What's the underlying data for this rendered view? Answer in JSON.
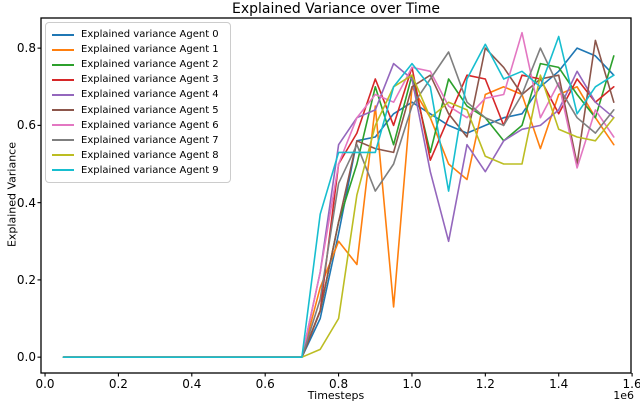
{
  "figure": {
    "background": "#ffffff",
    "spine_color": "#000000"
  },
  "chart_data": {
    "type": "line",
    "title": "Explained Variance over Time",
    "xlabel": "Timesteps",
    "ylabel": "Explained Variance",
    "x_offset_label": "1e6",
    "grid": false,
    "legend_position": "upper left",
    "xlim": [
      -0.011,
      1.597
    ],
    "ylim": [
      -0.041,
      0.878
    ],
    "x_ticks": [
      0.0,
      0.2,
      0.4,
      0.6,
      0.8,
      1.0,
      1.2,
      1.4,
      1.6
    ],
    "y_ticks": [
      0.0,
      0.2,
      0.4,
      0.6,
      0.8
    ],
    "x": [
      0.05,
      0.1,
      0.15,
      0.2,
      0.25,
      0.3,
      0.35,
      0.4,
      0.45,
      0.5,
      0.55,
      0.6,
      0.65,
      0.7,
      0.75,
      0.8,
      0.85,
      0.9,
      0.95,
      1.0,
      1.05,
      1.1,
      1.15,
      1.2,
      1.25,
      1.3,
      1.35,
      1.4,
      1.45,
      1.5,
      1.55
    ],
    "series": [
      {
        "name": "Agent 0",
        "label": "Explained variance Agent 0",
        "color": "#1f77b4",
        "values": [
          0,
          0,
          0,
          0,
          0,
          0,
          0,
          0,
          0,
          0,
          0,
          0,
          0,
          0,
          0.1,
          0.32,
          0.56,
          0.57,
          0.63,
          0.66,
          0.63,
          0.6,
          0.58,
          0.6,
          0.62,
          0.63,
          0.7,
          0.74,
          0.8,
          0.78,
          0.73
        ]
      },
      {
        "name": "Agent 1",
        "label": "Explained variance Agent 1",
        "color": "#ff7f0e",
        "values": [
          0,
          0,
          0,
          0,
          0,
          0,
          0,
          0,
          0,
          0,
          0,
          0,
          0,
          0,
          0.18,
          0.3,
          0.24,
          0.65,
          0.13,
          0.7,
          0.62,
          0.5,
          0.46,
          0.68,
          0.7,
          0.68,
          0.54,
          0.68,
          0.7,
          0.62,
          0.55
        ]
      },
      {
        "name": "Agent 2",
        "label": "Explained variance Agent 2",
        "color": "#2ca02c",
        "values": [
          0,
          0,
          0,
          0,
          0,
          0,
          0,
          0,
          0,
          0,
          0,
          0,
          0,
          0,
          0.12,
          0.35,
          0.5,
          0.7,
          0.55,
          0.73,
          0.53,
          0.72,
          0.65,
          0.62,
          0.56,
          0.6,
          0.76,
          0.75,
          0.68,
          0.62,
          0.78
        ]
      },
      {
        "name": "Agent 3",
        "label": "Explained variance Agent 3",
        "color": "#d62728",
        "values": [
          0,
          0,
          0,
          0,
          0,
          0,
          0,
          0,
          0,
          0,
          0,
          0,
          0,
          0,
          0.12,
          0.5,
          0.58,
          0.72,
          0.6,
          0.75,
          0.51,
          0.62,
          0.73,
          0.72,
          0.6,
          0.73,
          0.72,
          0.63,
          0.72,
          0.66,
          0.7
        ]
      },
      {
        "name": "Agent 4",
        "label": "Explained variance Agent 4",
        "color": "#9467bd",
        "values": [
          0,
          0,
          0,
          0,
          0,
          0,
          0,
          0,
          0,
          0,
          0,
          0,
          0,
          0,
          0.22,
          0.55,
          0.62,
          0.64,
          0.76,
          0.72,
          0.48,
          0.3,
          0.55,
          0.48,
          0.56,
          0.59,
          0.6,
          0.64,
          0.74,
          0.66,
          0.62
        ]
      },
      {
        "name": "Agent 5",
        "label": "Explained variance Agent 5",
        "color": "#8c564b",
        "values": [
          0,
          0,
          0,
          0,
          0,
          0,
          0,
          0,
          0,
          0,
          0,
          0,
          0,
          0,
          0.12,
          0.35,
          0.56,
          0.54,
          0.53,
          0.7,
          0.73,
          0.63,
          0.57,
          0.8,
          0.75,
          0.68,
          0.72,
          0.73,
          0.5,
          0.82,
          0.66
        ]
      },
      {
        "name": "Agent 6",
        "label": "Explained variance Agent 6",
        "color": "#e377c2",
        "values": [
          0,
          0,
          0,
          0,
          0,
          0,
          0,
          0,
          0,
          0,
          0,
          0,
          0,
          0,
          0.22,
          0.5,
          0.62,
          0.68,
          0.66,
          0.75,
          0.74,
          0.65,
          0.62,
          0.67,
          0.68,
          0.84,
          0.62,
          0.71,
          0.49,
          0.64,
          0.57
        ]
      },
      {
        "name": "Agent 7",
        "label": "Explained variance Agent 7",
        "color": "#7f7f7f",
        "values": [
          0,
          0,
          0,
          0,
          0,
          0,
          0,
          0,
          0,
          0,
          0,
          0,
          0,
          0,
          0.15,
          0.45,
          0.55,
          0.43,
          0.5,
          0.65,
          0.72,
          0.79,
          0.66,
          0.62,
          0.6,
          0.68,
          0.8,
          0.7,
          0.62,
          0.58,
          0.64
        ]
      },
      {
        "name": "Agent 8",
        "label": "Explained variance Agent 8",
        "color": "#bcbd22",
        "values": [
          0,
          0,
          0,
          0,
          0,
          0,
          0,
          0,
          0,
          0,
          0,
          0,
          0,
          0,
          0.02,
          0.1,
          0.42,
          0.6,
          0.7,
          0.73,
          0.62,
          0.66,
          0.64,
          0.52,
          0.5,
          0.5,
          0.73,
          0.59,
          0.57,
          0.56,
          0.62
        ]
      },
      {
        "name": "Agent 9",
        "label": "Explained variance Agent 9",
        "color": "#17becf",
        "values": [
          0,
          0,
          0,
          0,
          0,
          0,
          0,
          0,
          0,
          0,
          0,
          0,
          0,
          0,
          0.37,
          0.53,
          0.53,
          0.53,
          0.7,
          0.76,
          0.7,
          0.43,
          0.72,
          0.81,
          0.72,
          0.74,
          0.7,
          0.83,
          0.63,
          0.7,
          0.73
        ]
      }
    ]
  }
}
